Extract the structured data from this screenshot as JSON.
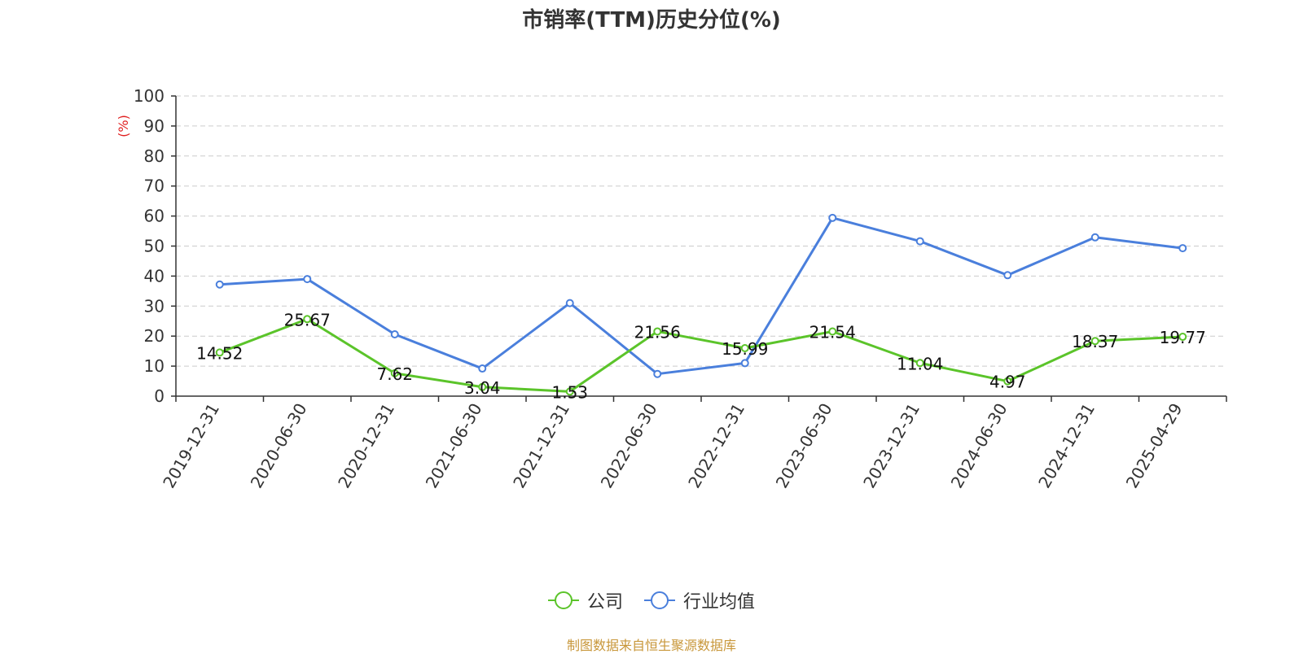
{
  "chart_data": {
    "type": "line",
    "title": "市销率(TTM)历史分位(%)",
    "ylabel": "(%)",
    "ylim": [
      0,
      100
    ],
    "yticks": [
      0,
      10,
      20,
      30,
      40,
      50,
      60,
      70,
      80,
      90,
      100
    ],
    "grid": true,
    "legend_position": "bottom-center",
    "categories": [
      "2019-12-31",
      "2020-06-30",
      "2020-12-31",
      "2021-06-30",
      "2021-12-31",
      "2022-06-30",
      "2022-12-31",
      "2023-06-30",
      "2023-12-31",
      "2024-06-30",
      "2024-12-31",
      "2025-04-29"
    ],
    "series": [
      {
        "name": "公司",
        "color": "#5bc42a",
        "labels_shown": true,
        "values": [
          14.52,
          25.67,
          7.62,
          3.04,
          1.53,
          21.56,
          15.99,
          21.54,
          11.04,
          4.97,
          18.37,
          19.77
        ]
      },
      {
        "name": "行业均值",
        "color": "#4a7fdc",
        "labels_shown": false,
        "values": [
          37.2,
          39.0,
          20.6,
          9.2,
          31.0,
          7.4,
          11.0,
          59.4,
          51.6,
          40.3,
          52.9,
          49.3
        ]
      }
    ],
    "source_note": "制图数据来自恒生聚源数据库"
  }
}
